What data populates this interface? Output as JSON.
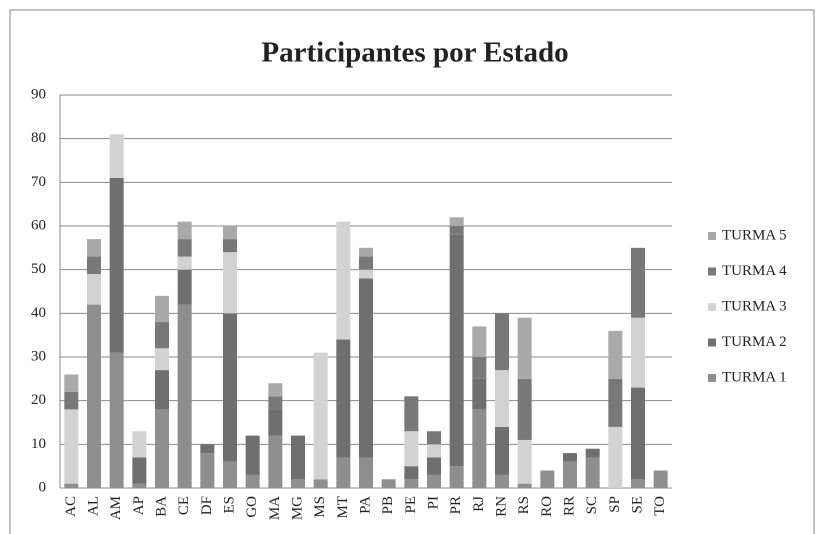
{
  "chart_data": {
    "type": "stacked_bar",
    "title": "Participantes por Estado",
    "categories": [
      "AC",
      "AL",
      "AM",
      "AP",
      "BA",
      "CE",
      "DF",
      "ES",
      "GO",
      "MA",
      "MG",
      "MS",
      "MT",
      "PA",
      "PB",
      "PE",
      "PI",
      "PR",
      "RJ",
      "RN",
      "RS",
      "RO",
      "RR",
      "SC",
      "SP",
      "SE",
      "TO"
    ],
    "series": [
      {
        "name": "TURMA 1",
        "color": "#8e8e8e",
        "values": [
          1,
          42,
          31,
          1,
          18,
          42,
          8,
          6,
          3,
          12,
          2,
          2,
          7,
          7,
          2,
          2,
          3,
          5,
          18,
          3,
          1,
          4,
          6,
          7,
          0,
          2,
          4
        ]
      },
      {
        "name": "TURMA 2",
        "color": "#6f6f6f",
        "values": [
          0,
          0,
          40,
          6,
          9,
          8,
          2,
          34,
          9,
          6,
          10,
          0,
          27,
          41,
          0,
          3,
          4,
          53,
          7,
          11,
          0,
          0,
          2,
          2,
          0,
          21,
          0
        ]
      },
      {
        "name": "TURMA 3",
        "color": "#d2d2d2",
        "values": [
          17,
          7,
          10,
          6,
          5,
          3,
          0,
          14,
          0,
          0,
          0,
          29,
          27,
          2,
          0,
          8,
          3,
          0,
          0,
          13,
          10,
          0,
          0,
          0,
          14,
          16,
          0
        ]
      },
      {
        "name": "TURMA 4",
        "color": "#787878",
        "values": [
          4,
          4,
          0,
          0,
          6,
          4,
          0,
          3,
          0,
          3,
          0,
          0,
          0,
          3,
          0,
          8,
          3,
          2,
          5,
          13,
          14,
          0,
          0,
          0,
          11,
          16,
          0
        ]
      },
      {
        "name": "TURMA 5",
        "color": "#a9a9a9",
        "values": [
          4,
          4,
          0,
          0,
          6,
          4,
          0,
          3,
          0,
          3,
          0,
          0,
          0,
          2,
          0,
          0,
          0,
          2,
          7,
          0,
          14,
          0,
          0,
          0,
          11,
          0,
          0
        ]
      }
    ],
    "ylim": [
      0,
      90
    ],
    "yticks": [
      0,
      10,
      20,
      30,
      40,
      50,
      60,
      70,
      80,
      90
    ],
    "grid": true,
    "legend": "right"
  }
}
